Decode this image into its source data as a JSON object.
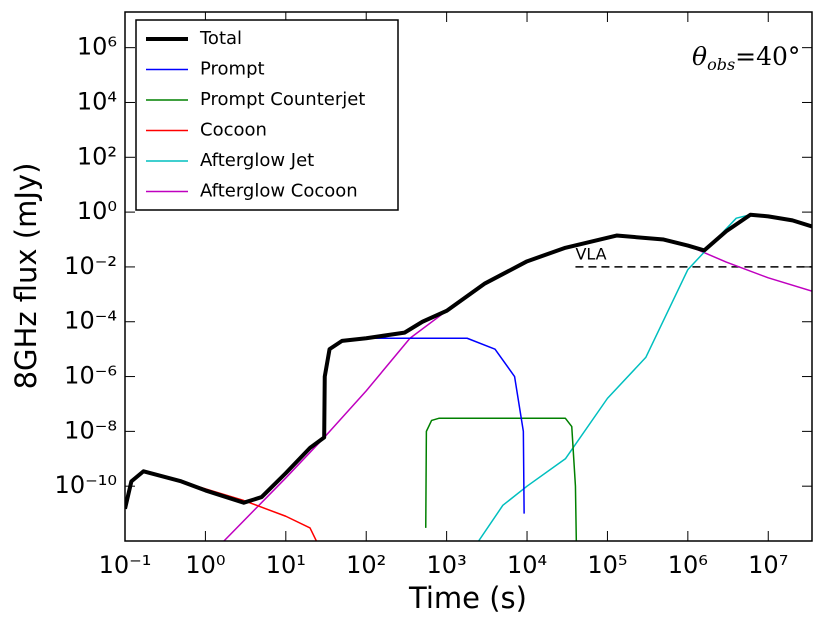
{
  "chart_data": {
    "type": "line",
    "xlabel": "Time (s)",
    "ylabel": "8GHz flux (mJy)",
    "xscale": "log",
    "yscale": "log",
    "xlim": [
      0.1,
      35000000
    ],
    "ylim": [
      1e-12,
      20000000
    ],
    "xticks": [
      {
        "value": 0.1,
        "label": "10⁻¹"
      },
      {
        "value": 1,
        "label": "10⁰"
      },
      {
        "value": 10,
        "label": "10¹"
      },
      {
        "value": 100,
        "label": "10²"
      },
      {
        "value": 1000,
        "label": "10³"
      },
      {
        "value": 10000,
        "label": "10⁴"
      },
      {
        "value": 100000,
        "label": "10⁵"
      },
      {
        "value": 1000000,
        "label": "10⁶"
      },
      {
        "value": 10000000,
        "label": "10⁷"
      }
    ],
    "yticks": [
      {
        "value": 1e-10,
        "label": "10⁻¹⁰"
      },
      {
        "value": 1e-08,
        "label": "10⁻⁸"
      },
      {
        "value": 1e-06,
        "label": "10⁻⁶"
      },
      {
        "value": 0.0001,
        "label": "10⁻⁴"
      },
      {
        "value": 0.01,
        "label": "10⁻²"
      },
      {
        "value": 1,
        "label": "10⁰"
      },
      {
        "value": 100,
        "label": "10²"
      },
      {
        "value": 10000,
        "label": "10⁴"
      },
      {
        "value": 1000000,
        "label": "10⁶"
      }
    ],
    "legend": "upper left",
    "annotation": {
      "symbol": "θ",
      "subscript": "obs",
      "text": "=40°"
    },
    "reference_line": {
      "label": "VLA",
      "y": 0.01,
      "x": [
        40000,
        35000000
      ]
    },
    "series": [
      {
        "name": "Total",
        "color": "#000000",
        "width": 4,
        "x": [
          0.1,
          0.12,
          0.17,
          0.5,
          1,
          3,
          5,
          10,
          20,
          30,
          30.5,
          35,
          50,
          100,
          300,
          500,
          1000,
          3000,
          10000,
          30000,
          130000,
          500000,
          1000000,
          1600000,
          3000000,
          6000000,
          10000000,
          20000000,
          35000000
        ],
        "values": [
          1.5e-11,
          1.5e-10,
          3.5e-10,
          1.5e-10,
          7e-11,
          2.5e-11,
          4e-11,
          3e-10,
          2.5e-09,
          6e-09,
          1e-06,
          1e-05,
          2e-05,
          2.5e-05,
          4e-05,
          0.0001,
          0.00025,
          0.0025,
          0.016,
          0.05,
          0.14,
          0.1,
          0.06,
          0.04,
          0.2,
          0.8,
          0.7,
          0.5,
          0.3
        ]
      },
      {
        "name": "Prompt",
        "color": "#0000ff",
        "width": 1.5,
        "x": [
          30,
          30.5,
          35,
          50,
          100,
          500,
          1800,
          4000,
          7000,
          9000,
          9200
        ],
        "values": [
          6e-09,
          1e-06,
          1e-05,
          2e-05,
          2.5e-05,
          2.5e-05,
          2.5e-05,
          1e-05,
          1e-06,
          1e-08,
          1e-11
        ]
      },
      {
        "name": "Prompt Counterjet",
        "color": "#008000",
        "width": 1.5,
        "x": [
          550,
          560,
          650,
          800,
          10000,
          30000,
          36000,
          40000,
          41000
        ],
        "values": [
          3e-12,
          1e-08,
          2.5e-08,
          3e-08,
          3e-08,
          3e-08,
          1.5e-08,
          1e-10,
          1e-12
        ]
      },
      {
        "name": "Cocoon",
        "color": "#ff0000",
        "width": 1.5,
        "x": [
          0.1,
          0.12,
          0.17,
          0.5,
          1,
          3,
          10,
          20,
          24
        ],
        "values": [
          1.5e-11,
          1.5e-10,
          3.5e-10,
          1.5e-10,
          8e-11,
          3e-11,
          8e-12,
          3e-12,
          1e-12
        ]
      },
      {
        "name": "Afterglow Jet",
        "color": "#00bfbf",
        "width": 1.5,
        "x": [
          2500,
          5000,
          10000,
          30000,
          100000,
          300000,
          1000000,
          2000000,
          4000000,
          6000000,
          10000000,
          20000000,
          35000000
        ],
        "values": [
          1e-12,
          2e-11,
          1e-10,
          1e-09,
          1.6e-07,
          5e-06,
          0.008,
          0.07,
          0.6,
          0.8,
          0.7,
          0.5,
          0.3
        ]
      },
      {
        "name": "Afterglow Cocoon",
        "color": "#bf00bf",
        "width": 1.5,
        "x": [
          1.7,
          10,
          30,
          100,
          350,
          1000,
          3000,
          10000,
          30000,
          130000,
          500000,
          1000000,
          3000000,
          10000000,
          35000000
        ],
        "values": [
          1e-12,
          2e-10,
          6e-09,
          3e-07,
          2.5e-05,
          0.00025,
          0.0025,
          0.016,
          0.05,
          0.14,
          0.1,
          0.06,
          0.015,
          0.004,
          0.0013
        ]
      }
    ]
  }
}
